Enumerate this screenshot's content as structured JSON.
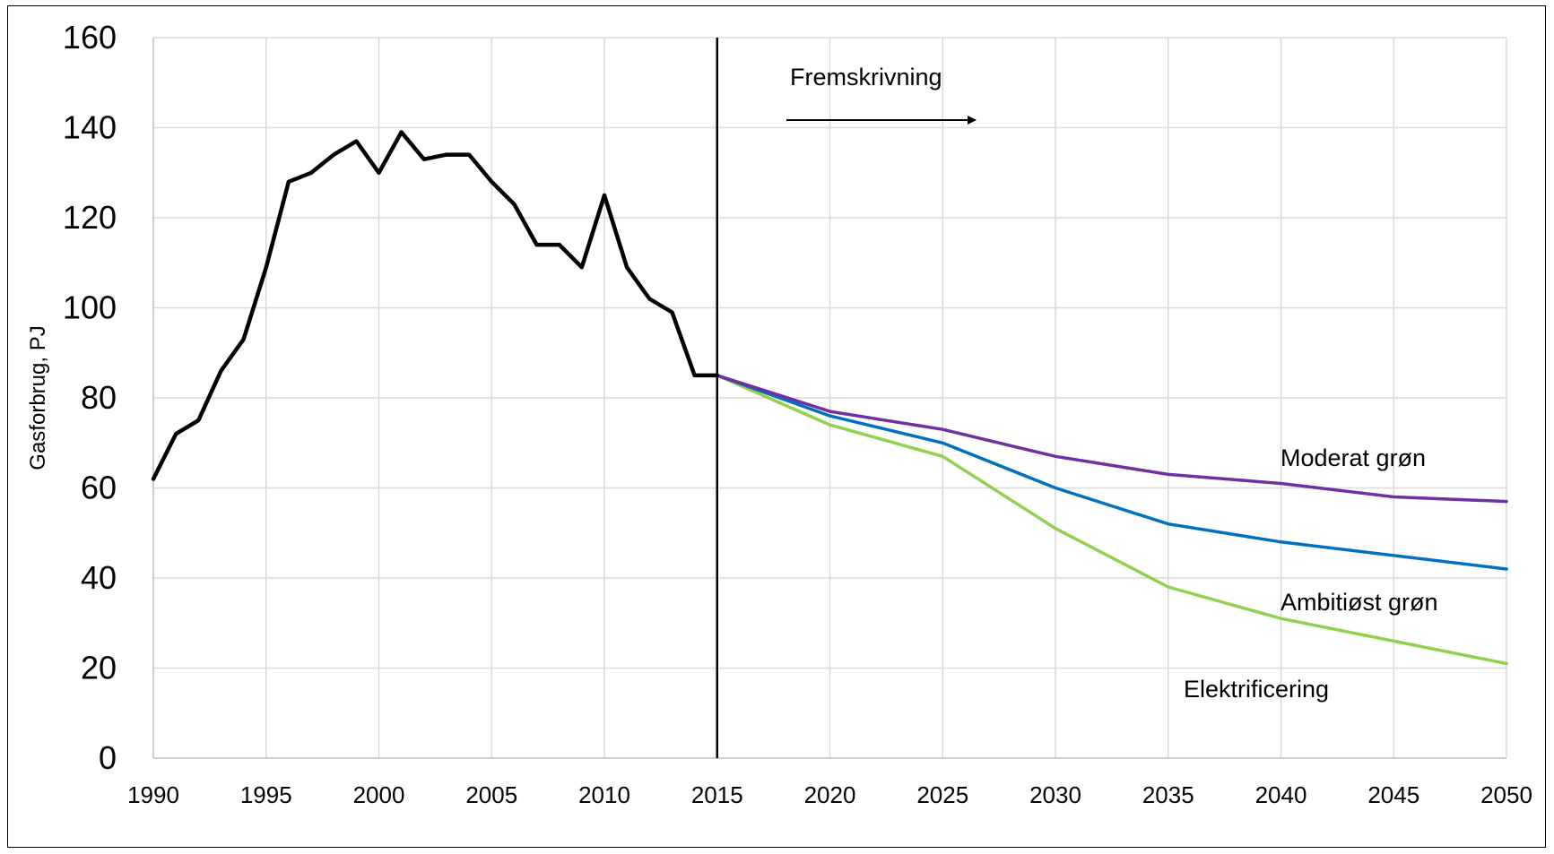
{
  "chart_data": {
    "type": "line",
    "title": "",
    "xlabel": "",
    "ylabel": "Gasforbrug, PJ",
    "xlim": [
      1990,
      2050
    ],
    "ylim": [
      0,
      160
    ],
    "x_ticks": [
      1990,
      1995,
      2000,
      2005,
      2010,
      2015,
      2020,
      2025,
      2030,
      2035,
      2040,
      2045,
      2050
    ],
    "y_ticks": [
      0,
      20,
      40,
      60,
      80,
      100,
      120,
      140,
      160
    ],
    "grid": true,
    "legend": "none",
    "divider_x": 2015,
    "colors": {
      "historical": "#000000",
      "moderat": "#7030a0",
      "ambitiost": "#0070c0",
      "elektrificering": "#92d050",
      "grid": "#d9d9d9"
    },
    "series": [
      {
        "key": "historical",
        "x": [
          1990,
          1991,
          1992,
          1993,
          1994,
          1995,
          1996,
          1997,
          1998,
          1999,
          2000,
          2001,
          2002,
          2003,
          2004,
          2005,
          2006,
          2007,
          2008,
          2009,
          2010,
          2011,
          2012,
          2013,
          2014,
          2015
        ],
        "values": [
          62,
          72,
          75,
          86,
          93,
          109,
          128,
          130,
          134,
          137,
          130,
          139,
          133,
          134,
          134,
          128,
          123,
          114,
          114,
          109,
          125,
          109,
          102,
          99,
          85,
          85
        ]
      },
      {
        "key": "moderat",
        "x": [
          2015,
          2020,
          2025,
          2030,
          2035,
          2040,
          2045,
          2050
        ],
        "values": [
          85,
          77,
          73,
          67,
          63,
          61,
          58,
          57
        ]
      },
      {
        "key": "ambitiost",
        "x": [
          2015,
          2020,
          2025,
          2030,
          2035,
          2040,
          2045,
          2050
        ],
        "values": [
          85,
          76,
          70,
          60,
          52,
          48,
          45,
          42
        ]
      },
      {
        "key": "elektrificering",
        "x": [
          2015,
          2020,
          2025,
          2030,
          2035,
          2040,
          2045,
          2050
        ],
        "values": [
          85,
          74,
          67,
          51,
          38,
          31,
          26,
          21
        ]
      }
    ],
    "annotations": {
      "fremskrivning": "Fremskrivning",
      "moderat": "Moderat grøn",
      "ambitiost": "Ambitiøst grøn",
      "elektrificering": "Elektrificering"
    }
  }
}
